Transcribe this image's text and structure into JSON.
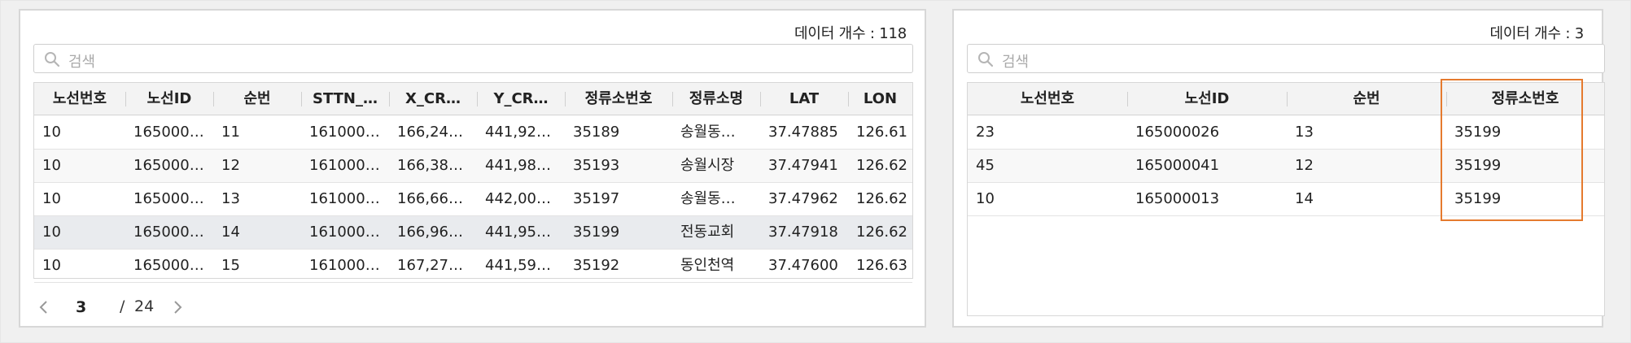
{
  "left_panel": {
    "count_text": "데이터 개수 : 118",
    "search_placeholder": "검색",
    "headers": [
      "노선번호",
      "노선ID",
      "순번",
      "STTN_…",
      "X_CR…",
      "Y_CR…",
      "정류소번호",
      "정류소명",
      "LAT",
      "LON"
    ],
    "rows": [
      [
        "10",
        "165000…",
        "11",
        "161000…",
        "166,24…",
        "441,92…",
        "35189",
        "송월동…",
        "37.47885",
        "126.61…"
      ],
      [
        "10",
        "165000…",
        "12",
        "161000…",
        "166,38…",
        "441,98…",
        "35193",
        "송월시장",
        "37.47941",
        "126.62…"
      ],
      [
        "10",
        "165000…",
        "13",
        "161000…",
        "166,66…",
        "442,00…",
        "35197",
        "송월동…",
        "37.47962",
        "126.62…"
      ],
      [
        "10",
        "165000…",
        "14",
        "161000…",
        "166,96…",
        "441,95…",
        "35199",
        "전동교회",
        "37.47918",
        "126.62…"
      ],
      [
        "10",
        "165000…",
        "15",
        "161000…",
        "167,27…",
        "441,59…",
        "35192",
        "동인천역",
        "37.47600",
        "126.63…"
      ]
    ],
    "selected_row": 3,
    "pager": {
      "current": "3",
      "separator": "/",
      "total": "24"
    }
  },
  "right_panel": {
    "count_text": "데이터 개수 : 3",
    "search_placeholder": "검색",
    "headers": [
      "노선번호",
      "노선ID",
      "순번",
      "정류소번호"
    ],
    "rows": [
      [
        "23",
        "165000026",
        "13",
        "35199"
      ],
      [
        "45",
        "165000041",
        "12",
        "35199"
      ],
      [
        "10",
        "165000013",
        "14",
        "35199"
      ]
    ]
  },
  "colors": {
    "highlight_border": "#e57a2e",
    "selected_row_bg": "#e9ebee",
    "header_bg": "#f3f3f3"
  }
}
